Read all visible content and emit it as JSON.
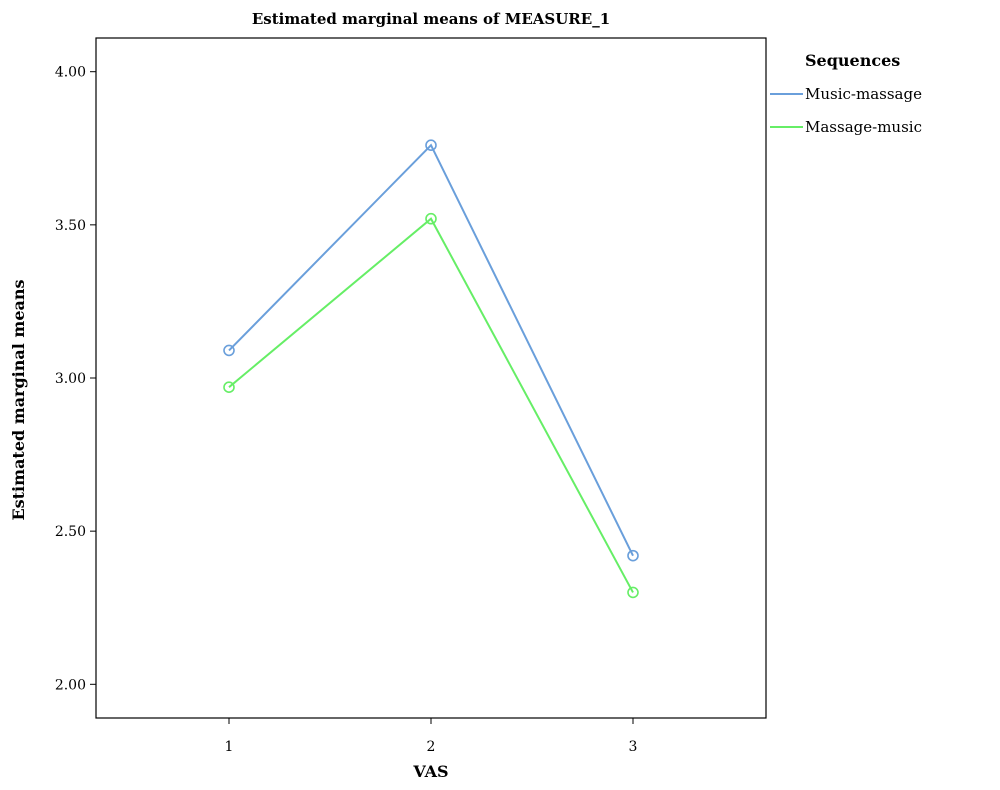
{
  "chart_data": {
    "type": "line",
    "title": "Estimated marginal means of MEASURE_1",
    "xlabel": "VAS",
    "ylabel": "Estimated marginal means",
    "categories": [
      "1",
      "2",
      "3"
    ],
    "ylim": [
      1.89,
      4.11
    ],
    "yticks": [
      "2.00",
      "2.50",
      "3.00",
      "3.50",
      "4.00"
    ],
    "grid": false,
    "legend": {
      "title": "Sequences",
      "placement": "right"
    },
    "series": [
      {
        "name": "Music-massage",
        "color": "#6a9fdb",
        "values": [
          3.09,
          3.76,
          2.42
        ]
      },
      {
        "name": "Massage-music",
        "color": "#66ee66",
        "values": [
          2.97,
          3.52,
          2.3
        ]
      }
    ]
  }
}
